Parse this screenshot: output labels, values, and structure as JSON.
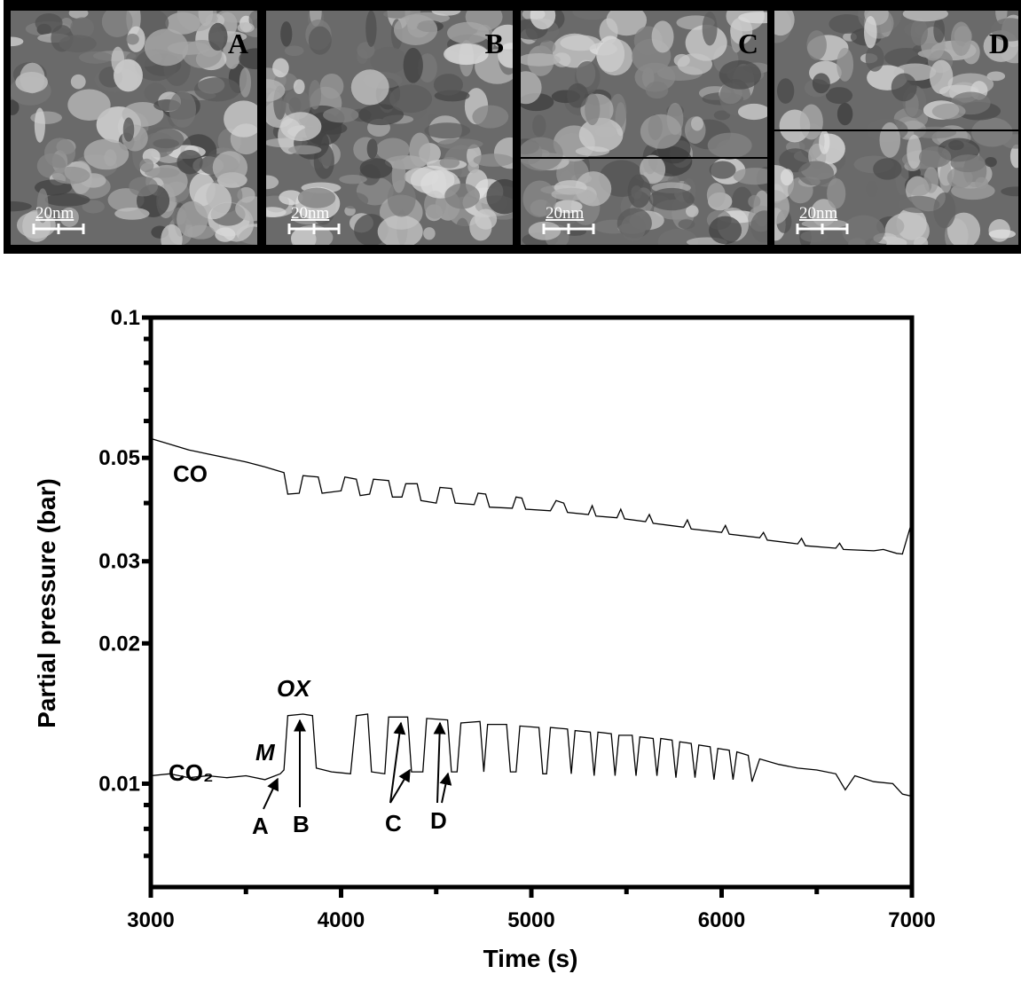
{
  "images": [
    {
      "label": "A",
      "scale": "20nm"
    },
    {
      "label": "B",
      "scale": "20nm"
    },
    {
      "label": "C",
      "scale": "20nm"
    },
    {
      "label": "D",
      "scale": "20nm"
    }
  ],
  "chart_data": {
    "type": "line",
    "yscale": "log",
    "xlabel": "Time (s)",
    "ylabel": "Partial pressure (bar)",
    "xlim": [
      3000,
      7000
    ],
    "xticks": [
      3000,
      4000,
      5000,
      6000,
      7000
    ],
    "xminorticks": [
      3500,
      4500,
      5500,
      6500
    ],
    "ylim": [
      0.006,
      0.1
    ],
    "yticks": [
      0.1,
      0.05,
      0.03,
      0.02,
      0.01
    ],
    "yminorticks": [
      0.09,
      0.08,
      0.07,
      0.06,
      0.04,
      0.009,
      0.008,
      0.007
    ],
    "series": [
      {
        "name": "CO",
        "color": "#000000",
        "x": [
          3000,
          3100,
          3200,
          3300,
          3400,
          3500,
          3600,
          3700,
          3720,
          3780,
          3800,
          3880,
          3900,
          4000,
          4020,
          4080,
          4100,
          4150,
          4170,
          4250,
          4270,
          4320,
          4340,
          4400,
          4420,
          4500,
          4520,
          4580,
          4600,
          4700,
          4720,
          4760,
          4780,
          4900,
          4920,
          4950,
          4970,
          5100,
          5130,
          5170,
          5190,
          5300,
          5320,
          5340,
          5450,
          5470,
          5490,
          5600,
          5620,
          5640,
          5800,
          5820,
          5840,
          6000,
          6020,
          6040,
          6200,
          6220,
          6240,
          6400,
          6420,
          6440,
          6600,
          6620,
          6640,
          6800,
          6850,
          6920,
          6950,
          7000
        ],
        "values": [
          0.055,
          0.0535,
          0.052,
          0.051,
          0.05,
          0.049,
          0.0478,
          0.0465,
          0.0418,
          0.042,
          0.0458,
          0.0455,
          0.042,
          0.0425,
          0.0455,
          0.045,
          0.0415,
          0.0418,
          0.045,
          0.0447,
          0.0412,
          0.0412,
          0.044,
          0.044,
          0.0405,
          0.04,
          0.0432,
          0.043,
          0.04,
          0.0397,
          0.042,
          0.0418,
          0.0392,
          0.039,
          0.0412,
          0.041,
          0.0388,
          0.0385,
          0.0405,
          0.04,
          0.0382,
          0.0378,
          0.0395,
          0.0375,
          0.0372,
          0.0388,
          0.037,
          0.0365,
          0.0378,
          0.0362,
          0.0355,
          0.0368,
          0.0352,
          0.0346,
          0.0358,
          0.0343,
          0.0337,
          0.0346,
          0.0333,
          0.0327,
          0.0336,
          0.0324,
          0.032,
          0.0328,
          0.0318,
          0.0316,
          0.0318,
          0.0312,
          0.0311,
          0.0365
        ]
      },
      {
        "name": "CO₂",
        "color": "#000000",
        "x": [
          3000,
          3100,
          3200,
          3300,
          3400,
          3500,
          3600,
          3680,
          3700,
          3720,
          3800,
          3850,
          3870,
          3950,
          4050,
          4080,
          4140,
          4160,
          4230,
          4250,
          4350,
          4370,
          4430,
          4450,
          4560,
          4580,
          4610,
          4630,
          4730,
          4750,
          4770,
          4870,
          4890,
          4920,
          4940,
          5040,
          5060,
          5080,
          5100,
          5190,
          5210,
          5230,
          5310,
          5330,
          5350,
          5420,
          5440,
          5460,
          5530,
          5550,
          5570,
          5640,
          5660,
          5680,
          5740,
          5760,
          5780,
          5840,
          5860,
          5880,
          5940,
          5960,
          5980,
          6040,
          6060,
          6080,
          6140,
          6160,
          6200,
          6300,
          6400,
          6500,
          6600,
          6650,
          6700,
          6800,
          6900,
          6950,
          7000
        ],
        "values": [
          0.0104,
          0.0105,
          0.0103,
          0.0104,
          0.0103,
          0.0104,
          0.0102,
          0.0105,
          0.0107,
          0.014,
          0.0141,
          0.014,
          0.0108,
          0.0106,
          0.0105,
          0.014,
          0.0141,
          0.0106,
          0.0105,
          0.0139,
          0.0139,
          0.0106,
          0.0106,
          0.0138,
          0.0137,
          0.0106,
          0.0106,
          0.0135,
          0.0136,
          0.0106,
          0.0134,
          0.0134,
          0.0106,
          0.0106,
          0.0133,
          0.0132,
          0.0105,
          0.0105,
          0.0132,
          0.0131,
          0.0105,
          0.013,
          0.0129,
          0.0104,
          0.0129,
          0.0128,
          0.0104,
          0.0127,
          0.0127,
          0.0104,
          0.0126,
          0.0125,
          0.0104,
          0.0125,
          0.0124,
          0.0103,
          0.0123,
          0.0122,
          0.0103,
          0.0121,
          0.012,
          0.0102,
          0.0119,
          0.0118,
          0.0102,
          0.0117,
          0.0115,
          0.0101,
          0.0113,
          0.011,
          0.0108,
          0.0107,
          0.0105,
          0.0097,
          0.0104,
          0.0101,
          0.01,
          0.0095,
          0.0094
        ]
      }
    ],
    "annotations": [
      "OX",
      "M",
      "A",
      "B",
      "C",
      "D"
    ]
  }
}
